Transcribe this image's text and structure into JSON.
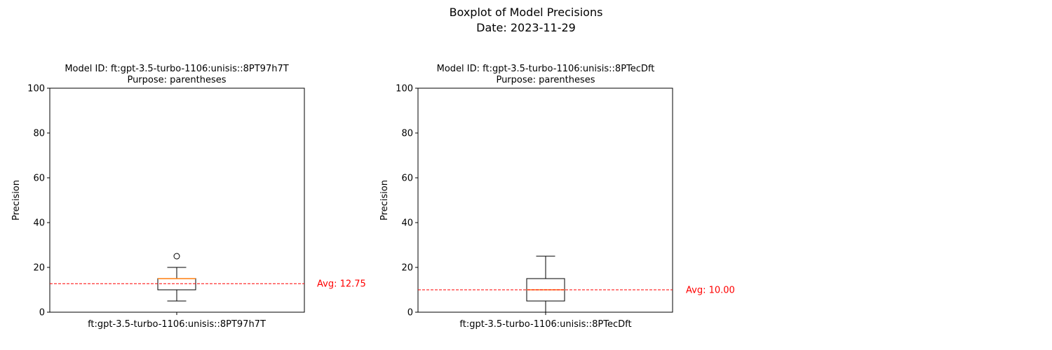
{
  "figure": {
    "title_line1": "Boxplot of Model Precisions",
    "title_line2": "Date: 2023-11-29"
  },
  "chart_data": [
    {
      "type": "box",
      "title_line1": "Model ID: ft:gpt-3.5-turbo-1106:unisis::8PT97h7T",
      "title_line2": "Purpose: parentheses",
      "categories": [
        "ft:gpt-3.5-turbo-1106:unisis::8PT97h7T"
      ],
      "ylabel": "Precision",
      "ylim": [
        0,
        100
      ],
      "yticks": [
        0,
        20,
        40,
        60,
        80,
        100
      ],
      "box": {
        "whisker_low": 5,
        "q1": 10,
        "median": 15,
        "q3": 15,
        "whisker_high": 20,
        "outliers": [
          25
        ]
      },
      "average": 12.75,
      "average_label": "Avg: 12.75",
      "colors": {
        "median": "#ff7f0e",
        "average_line": "#ff0000",
        "box": "#000000"
      }
    },
    {
      "type": "box",
      "title_line1": "Model ID: ft:gpt-3.5-turbo-1106:unisis::8PTecDft",
      "title_line2": "Purpose: parentheses",
      "categories": [
        "ft:gpt-3.5-turbo-1106:unisis::8PTecDft"
      ],
      "ylabel": "Precision",
      "ylim": [
        0,
        100
      ],
      "yticks": [
        0,
        20,
        40,
        60,
        80,
        100
      ],
      "box": {
        "whisker_low": 0,
        "q1": 5,
        "median": 10,
        "q3": 15,
        "whisker_high": 25,
        "outliers": []
      },
      "average": 10.0,
      "average_label": "Avg: 10.00",
      "colors": {
        "median": "#ff7f0e",
        "average_line": "#ff0000",
        "box": "#000000"
      }
    }
  ]
}
